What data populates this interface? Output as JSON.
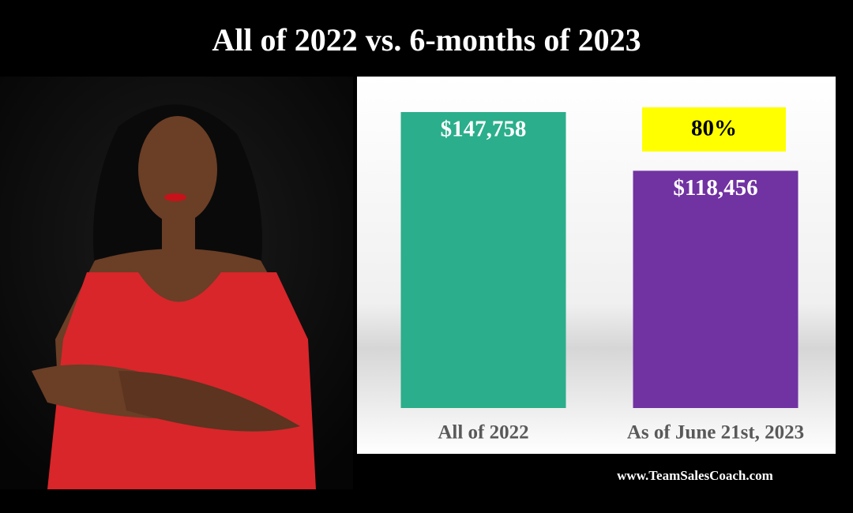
{
  "chart_data": {
    "type": "bar",
    "title": "All of 2022 vs. 6-months of 2023",
    "categories": [
      "All of 2022",
      "As of June 21st, 2023"
    ],
    "values": [
      147758,
      118456
    ],
    "value_labels": [
      "$147,758",
      "$118,456"
    ],
    "colors": [
      "#2bae8b",
      "#7132a2"
    ],
    "annotation": "80%",
    "footer": "www.TeamSalesCoach.com"
  }
}
